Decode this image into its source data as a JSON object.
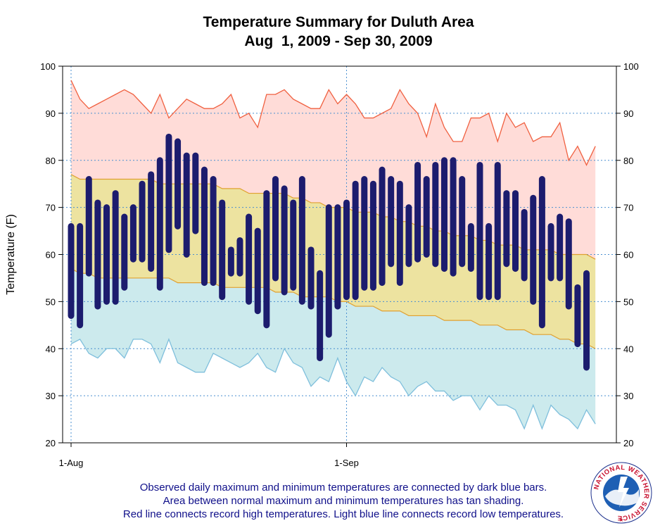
{
  "chart_data": {
    "type": "bar",
    "title": "Temperature Summary for Duluth Area",
    "subtitle": "Aug  1, 2009 - Sep 30, 2009",
    "ylabel": "Temperature (F)",
    "ylim": [
      20,
      100
    ],
    "yticks": [
      20,
      30,
      40,
      50,
      60,
      70,
      80,
      90,
      100
    ],
    "xticks": [
      {
        "day": 1,
        "label": "1-Aug"
      },
      {
        "day": 32,
        "label": "1-Sep"
      }
    ],
    "grid": true,
    "days": [
      1,
      2,
      3,
      4,
      5,
      6,
      7,
      8,
      9,
      10,
      11,
      12,
      13,
      14,
      15,
      16,
      17,
      18,
      19,
      20,
      21,
      22,
      23,
      24,
      25,
      26,
      27,
      28,
      29,
      30,
      31,
      32,
      33,
      34,
      35,
      36,
      37,
      38,
      39,
      40,
      41,
      42,
      43,
      44,
      45,
      46,
      47,
      48,
      49,
      50,
      51,
      52,
      53,
      54,
      55,
      56,
      57,
      58,
      59,
      60
    ],
    "series": [
      {
        "name": "Observed maximum",
        "color": "#1c1c6e",
        "values": [
          66,
          66,
          76,
          71,
          70,
          73,
          68,
          70,
          75,
          77,
          80,
          85,
          84,
          81,
          81,
          78,
          76,
          71,
          61,
          63,
          68,
          65,
          73,
          76,
          74,
          71,
          76,
          61,
          56,
          70,
          70,
          71,
          75,
          76,
          75,
          78,
          76,
          75,
          70,
          79,
          76,
          79,
          80,
          80,
          76,
          66,
          79,
          66,
          79,
          73,
          73,
          69,
          72,
          76,
          66,
          68,
          67,
          53,
          56,
          null
        ]
      },
      {
        "name": "Observed minimum",
        "color": "#1c1c6e",
        "values": [
          47,
          45,
          56,
          49,
          50,
          50,
          53,
          59,
          59,
          57,
          53,
          61,
          66,
          60,
          65,
          54,
          54,
          51,
          56,
          56,
          50,
          48,
          45,
          55,
          52,
          53,
          50,
          49,
          38,
          43,
          49,
          51,
          51,
          53,
          53,
          54,
          58,
          54,
          58,
          59,
          60,
          58,
          57,
          56,
          58,
          57,
          51,
          51,
          51,
          58,
          57,
          55,
          50,
          45,
          55,
          55,
          49,
          41,
          36,
          null
        ]
      },
      {
        "name": "Record high",
        "color": "#f06040",
        "values": [
          97,
          93,
          91,
          92,
          93,
          94,
          95,
          94,
          92,
          90,
          94,
          89,
          91,
          93,
          92,
          91,
          91,
          92,
          94,
          89,
          90,
          87,
          94,
          94,
          95,
          93,
          92,
          91,
          91,
          95,
          92,
          94,
          92,
          89,
          89,
          90,
          91,
          95,
          92,
          90,
          85,
          92,
          87,
          84,
          84,
          89,
          89,
          90,
          84,
          90,
          87,
          88,
          84,
          85,
          85,
          88,
          80,
          83,
          79,
          83
        ]
      },
      {
        "name": "Record low",
        "color": "#7fbfdc",
        "values": [
          41,
          42,
          39,
          38,
          40,
          40,
          38,
          42,
          42,
          41,
          37,
          42,
          37,
          36,
          35,
          35,
          39,
          38,
          37,
          36,
          37,
          39,
          36,
          35,
          40,
          37,
          36,
          32,
          34,
          33,
          38,
          33,
          30,
          34,
          33,
          36,
          34,
          33,
          30,
          32,
          33,
          31,
          31,
          29,
          30,
          30,
          27,
          30,
          28,
          28,
          27,
          23,
          28,
          23,
          28,
          26,
          25,
          23,
          27,
          24
        ]
      },
      {
        "name": "Normal maximum",
        "values": [
          77,
          76,
          76,
          76,
          76,
          76,
          76,
          76,
          76,
          76,
          75,
          75,
          75,
          75,
          75,
          75,
          75,
          74,
          74,
          74,
          73,
          73,
          73,
          73,
          73,
          72,
          72,
          71,
          71,
          70,
          70,
          70,
          69,
          69,
          69,
          68,
          68,
          67,
          67,
          66,
          66,
          65,
          65,
          64,
          64,
          64,
          63,
          63,
          62,
          62,
          62,
          61,
          61,
          61,
          61,
          60,
          60,
          60,
          60,
          59
        ]
      },
      {
        "name": "Normal minimum",
        "values": [
          57,
          56,
          56,
          55,
          55,
          55,
          55,
          55,
          55,
          55,
          55,
          55,
          54,
          54,
          54,
          54,
          54,
          53,
          53,
          53,
          53,
          53,
          53,
          52,
          52,
          52,
          51,
          51,
          51,
          51,
          50,
          50,
          49,
          49,
          49,
          48,
          48,
          48,
          47,
          47,
          47,
          47,
          46,
          46,
          46,
          46,
          45,
          45,
          45,
          44,
          44,
          44,
          43,
          43,
          43,
          42,
          42,
          41,
          41,
          40
        ]
      }
    ],
    "colors": {
      "observed": "#1c1c6e",
      "record_high_line": "#f06040",
      "record_high_fill": "#ffdcd8",
      "normal_fill": "#ede3a0",
      "normal_line": "#e0a030",
      "record_low_line": "#7fbfdc",
      "record_low_fill": "#cceaed",
      "grid": "#4a8fd0"
    }
  },
  "notes": [
    "Observed daily maximum and minimum temperatures are connected by dark blue bars.",
    "Area between normal maximum and minimum temperatures has tan shading.",
    "Red line connects record high temperatures. Light blue line connects record low temperatures."
  ],
  "logo": {
    "icon": "nws-logo-icon",
    "text": "NATIONAL WEATHER SERVICE"
  }
}
